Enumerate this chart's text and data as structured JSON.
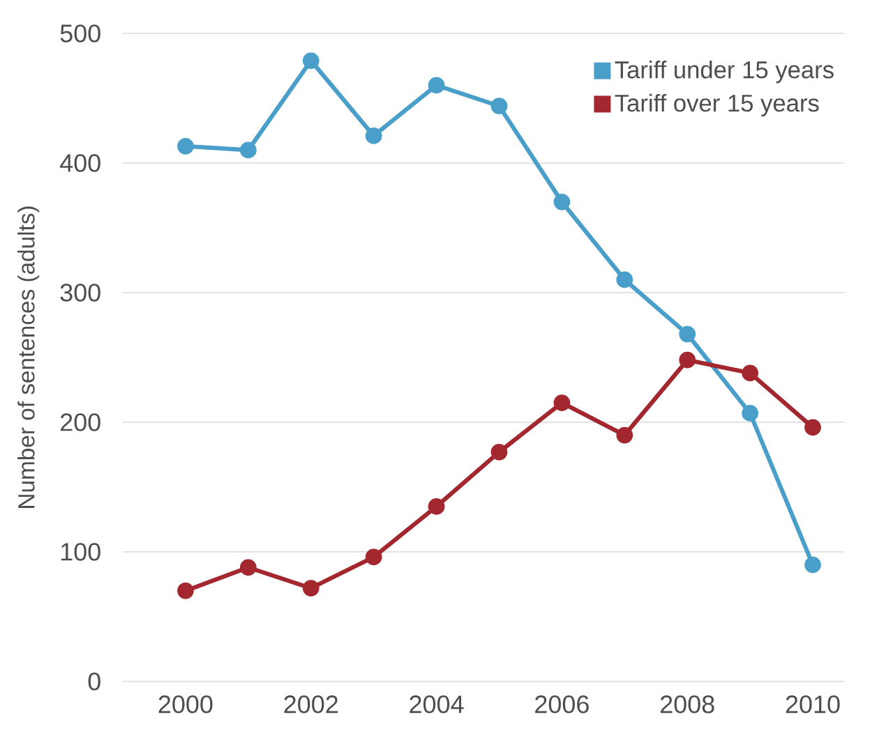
{
  "chart_data": {
    "type": "line",
    "ylabel": "Number of sentences (adults)",
    "x": [
      2000,
      2001,
      2002,
      2003,
      2004,
      2005,
      2006,
      2007,
      2008,
      2009,
      2010
    ],
    "series": [
      {
        "name": "Tariff under 15 years",
        "color": "#4a9fca",
        "values": [
          413,
          410,
          479,
          421,
          460,
          444,
          370,
          310,
          268,
          207,
          90
        ]
      },
      {
        "name": "Tariff over 15 years",
        "color": "#a3272f",
        "values": [
          70,
          88,
          72,
          96,
          135,
          177,
          215,
          190,
          248,
          238,
          196
        ]
      }
    ],
    "xlim": [
      1999,
      2010.5
    ],
    "xticks": [
      2000,
      2002,
      2004,
      2006,
      2008,
      2010
    ],
    "ylim": [
      0,
      500
    ],
    "yticks": [
      0,
      100,
      200,
      300,
      400,
      500
    ],
    "grid": "y",
    "legend": "top right",
    "marker": "circle",
    "line_style": "solid"
  }
}
